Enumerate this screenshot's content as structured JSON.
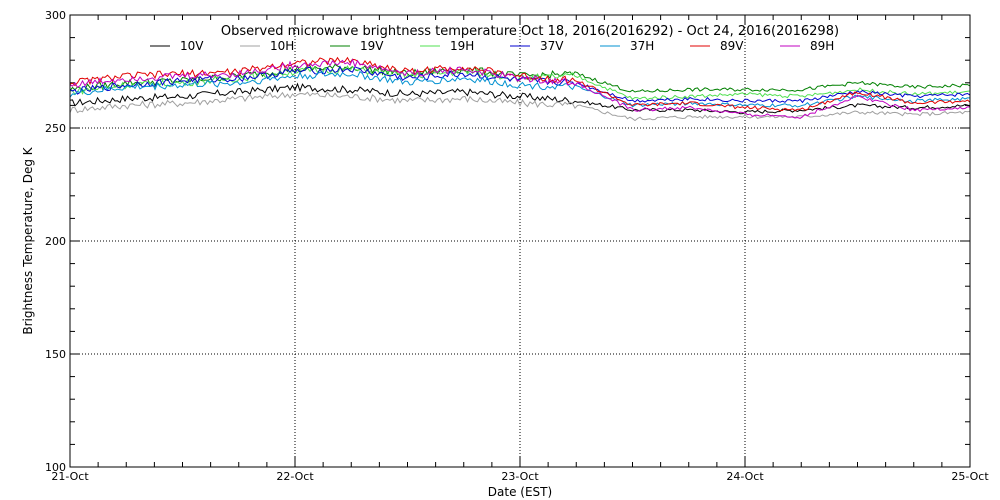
{
  "chart_data": {
    "type": "line",
    "title": "Observed microwave brightness temperature Oct 18, 2016(2016292) - Oct 24, 2016(2016298)",
    "xlabel": "Date (EST)",
    "ylabel": "Brightness Temperature, Deg K",
    "ylim": [
      100,
      300
    ],
    "xlim": [
      0,
      4
    ],
    "x_ticks": [
      "21-Oct",
      "22-Oct",
      "23-Oct",
      "24-Oct",
      "25-Oct"
    ],
    "y_ticks": [
      100,
      150,
      200,
      250,
      300
    ],
    "grid": "dotted at major ticks",
    "legend_placement": "top",
    "x": [
      0,
      0.25,
      0.5,
      0.75,
      1.0,
      1.25,
      1.5,
      1.75,
      2.0,
      2.25,
      2.5,
      2.75,
      3.0,
      3.25,
      3.5,
      3.75,
      4.0
    ],
    "series": [
      {
        "name": "10V",
        "color": "#000000",
        "values": [
          261,
          263,
          264,
          266,
          268,
          267,
          265,
          266,
          264,
          262,
          258,
          258,
          257,
          258,
          260,
          259,
          260
        ]
      },
      {
        "name": "10H",
        "color": "#a0a0a0",
        "values": [
          258,
          260,
          261,
          263,
          265,
          264,
          262,
          263,
          261,
          260,
          254,
          255,
          255,
          255,
          257,
          256,
          257
        ]
      },
      {
        "name": "19V",
        "color": "#008000",
        "values": [
          267,
          270,
          271,
          273,
          276,
          277,
          274,
          276,
          273,
          274,
          266,
          267,
          267,
          267,
          270,
          268,
          269
        ]
      },
      {
        "name": "19H",
        "color": "#50e050",
        "values": [
          266,
          269,
          270,
          272,
          275,
          276,
          273,
          275,
          272,
          273,
          263,
          264,
          265,
          264,
          267,
          265,
          266
        ]
      },
      {
        "name": "37V",
        "color": "#0000d0",
        "values": [
          266,
          269,
          271,
          272,
          275,
          276,
          272,
          274,
          271,
          270,
          262,
          263,
          262,
          262,
          266,
          264,
          265
        ]
      },
      {
        "name": "37H",
        "color": "#0090d0",
        "values": [
          265,
          268,
          269,
          270,
          273,
          274,
          270,
          272,
          269,
          268,
          260,
          261,
          260,
          260,
          264,
          262,
          263
        ]
      },
      {
        "name": "89V",
        "color": "#e00000",
        "values": [
          270,
          273,
          274,
          275,
          279,
          280,
          275,
          277,
          273,
          271,
          260,
          261,
          259,
          258,
          266,
          261,
          262
        ]
      },
      {
        "name": "89H",
        "color": "#c000c0",
        "values": [
          269,
          272,
          273,
          274,
          278,
          279,
          274,
          276,
          272,
          270,
          258,
          259,
          256,
          255,
          264,
          258,
          259
        ]
      }
    ]
  }
}
